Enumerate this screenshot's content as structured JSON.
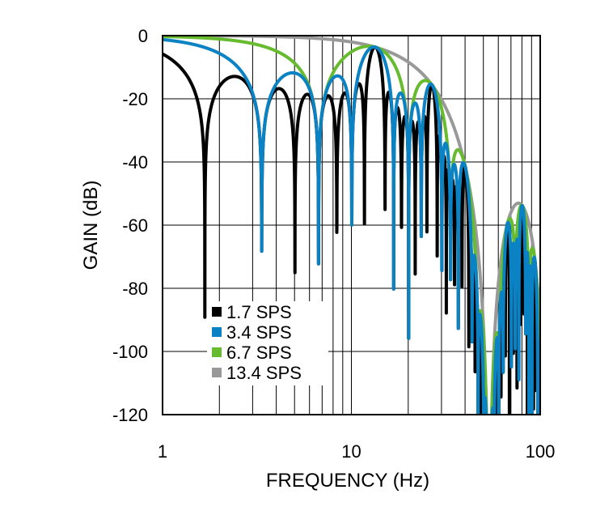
{
  "chart_data": {
    "type": "line",
    "title": "",
    "xlabel": "FREQUENCY (Hz)",
    "ylabel": "GAIN (dB)",
    "x_scale": "log",
    "xlim": [
      1,
      100
    ],
    "ylim": [
      -120,
      0
    ],
    "x_ticks": [
      "1",
      "10",
      "100"
    ],
    "y_ticks": [
      "0",
      "-20",
      "-40",
      "-60",
      "-80",
      "-100",
      "-120"
    ],
    "grid": true,
    "legend_placement": "bottom-left",
    "series": [
      {
        "name": "1.7 SPS",
        "rate_sps": 1.7,
        "color": "#000000"
      },
      {
        "name": "3.4 SPS",
        "rate_sps": 3.4,
        "color": "#0a82c4"
      },
      {
        "name": "6.7 SPS",
        "rate_sps": 6.7,
        "color": "#66bb2e"
      },
      {
        "name": "13.4 SPS",
        "rate_sps": 13.4,
        "color": "#999999"
      }
    ]
  }
}
